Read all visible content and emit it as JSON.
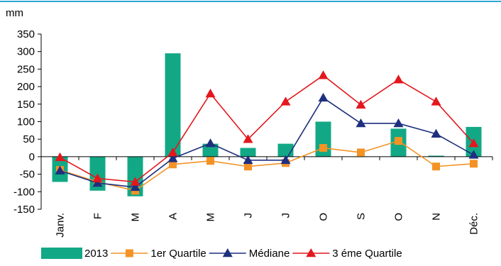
{
  "chart_data": {
    "type": "bar",
    "unit_label": "mm",
    "categories": [
      "Janv.",
      "F",
      "M",
      "A",
      "M",
      "J",
      "J",
      "O",
      "S",
      "O",
      "N",
      "Déc."
    ],
    "ylim": [
      -150,
      350
    ],
    "yticks": [
      350,
      300,
      250,
      200,
      150,
      100,
      50,
      0,
      -50,
      -100,
      -150
    ],
    "grid": false,
    "legend_position": "bottom",
    "series": [
      {
        "name": "2013",
        "kind": "bar",
        "color": "#12a886",
        "values": [
          -72,
          -97,
          -113,
          295,
          37,
          25,
          37,
          100,
          0,
          80,
          3,
          85
        ]
      },
      {
        "name": "1er Quartile",
        "kind": "line",
        "marker": "square",
        "color": "#f39325",
        "values": [
          -38,
          -72,
          -97,
          -22,
          -12,
          -28,
          -18,
          25,
          12,
          45,
          -28,
          -20
        ]
      },
      {
        "name": "Médiane",
        "kind": "line",
        "marker": "triangle",
        "color": "#1f2f7f",
        "values": [
          -40,
          -75,
          -87,
          -5,
          38,
          -10,
          -10,
          168,
          95,
          95,
          65,
          5
        ]
      },
      {
        "name": "3 éme Quartile",
        "kind": "line",
        "marker": "triangle",
        "color": "#e3171d",
        "values": [
          -2,
          -62,
          -72,
          12,
          180,
          50,
          157,
          232,
          148,
          220,
          157,
          38
        ]
      }
    ]
  }
}
